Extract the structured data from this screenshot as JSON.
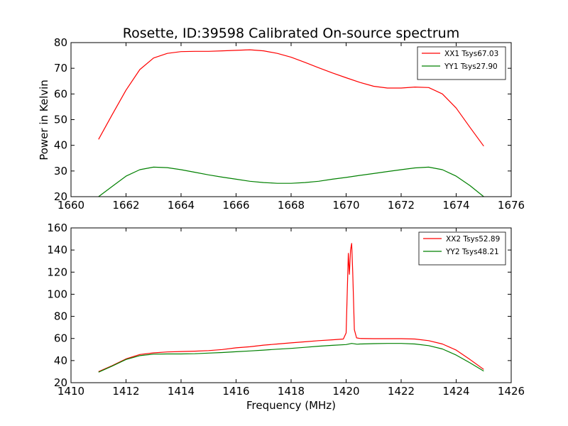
{
  "chart_data": [
    {
      "type": "line",
      "title": "Rosette, ID:39598 Calibrated On-source spectrum",
      "xlabel": "",
      "ylabel": "Power in Kelvin",
      "xlim": [
        1660,
        1676
      ],
      "ylim": [
        20,
        80
      ],
      "xticks": [
        "1660",
        "1662",
        "1664",
        "1666",
        "1668",
        "1670",
        "1672",
        "1674",
        "1676"
      ],
      "yticks": [
        "20",
        "30",
        "40",
        "50",
        "60",
        "70",
        "80"
      ],
      "legend_position": "top-right",
      "grid": false,
      "series": [
        {
          "name": "XX1 Tsys67.03",
          "color": "#ff0000",
          "x": [
            1661.0,
            1661.5,
            1662.0,
            1662.5,
            1663.0,
            1663.5,
            1664.0,
            1664.5,
            1665.0,
            1665.5,
            1666.0,
            1666.5,
            1667.0,
            1667.5,
            1668.0,
            1668.5,
            1669.0,
            1669.5,
            1670.0,
            1670.5,
            1671.0,
            1671.5,
            1672.0,
            1672.5,
            1673.0,
            1673.5,
            1674.0,
            1674.5,
            1675.0
          ],
          "y": [
            42.3,
            52.0,
            61.5,
            69.5,
            74.0,
            75.8,
            76.5,
            76.6,
            76.6,
            76.8,
            77.0,
            77.2,
            76.8,
            75.8,
            74.3,
            72.3,
            70.2,
            68.2,
            66.3,
            64.5,
            63.0,
            62.3,
            62.3,
            62.7,
            62.5,
            60.0,
            54.5,
            47.0,
            39.7
          ]
        },
        {
          "name": "YY1 Tsys27.90",
          "color": "#008000",
          "x": [
            1661.0,
            1661.5,
            1662.0,
            1662.5,
            1663.0,
            1663.5,
            1664.0,
            1664.5,
            1665.0,
            1665.5,
            1666.0,
            1666.5,
            1667.0,
            1667.5,
            1668.0,
            1668.5,
            1669.0,
            1669.5,
            1670.0,
            1670.5,
            1671.0,
            1671.5,
            1672.0,
            1672.5,
            1673.0,
            1673.5,
            1674.0,
            1674.5,
            1675.0
          ],
          "y": [
            20.0,
            24.0,
            28.0,
            30.5,
            31.5,
            31.3,
            30.5,
            29.5,
            28.5,
            27.6,
            26.8,
            26.0,
            25.5,
            25.2,
            25.2,
            25.5,
            26.0,
            26.8,
            27.5,
            28.3,
            29.0,
            29.8,
            30.5,
            31.2,
            31.5,
            30.5,
            28.0,
            24.3,
            20.0
          ]
        }
      ]
    },
    {
      "type": "line",
      "title": "",
      "xlabel": "Frequency (MHz)",
      "ylabel": "",
      "xlim": [
        1410,
        1426
      ],
      "ylim": [
        20,
        160
      ],
      "xticks": [
        "1410",
        "1412",
        "1414",
        "1416",
        "1418",
        "1420",
        "1422",
        "1424",
        "1426"
      ],
      "yticks": [
        "20",
        "40",
        "60",
        "80",
        "100",
        "120",
        "140",
        "160"
      ],
      "legend_position": "top-right",
      "grid": false,
      "series": [
        {
          "name": "XX2 Tsys52.89",
          "color": "#ff0000",
          "x": [
            1411.0,
            1411.5,
            1412.0,
            1412.5,
            1413.0,
            1413.5,
            1414.0,
            1414.5,
            1415.0,
            1415.5,
            1416.0,
            1416.5,
            1417.0,
            1417.5,
            1418.0,
            1418.5,
            1419.0,
            1419.5,
            1419.9,
            1420.0,
            1420.08,
            1420.12,
            1420.16,
            1420.2,
            1420.24,
            1420.3,
            1420.38,
            1420.5,
            1421.0,
            1421.5,
            1422.0,
            1422.5,
            1423.0,
            1423.5,
            1424.0,
            1424.5,
            1425.0
          ],
          "y": [
            30.0,
            35.5,
            41.5,
            45.5,
            47.0,
            47.8,
            48.2,
            48.5,
            49.0,
            50.0,
            51.5,
            52.5,
            54.0,
            55.0,
            56.0,
            57.0,
            58.0,
            58.8,
            59.5,
            65.0,
            137.0,
            118.0,
            140.0,
            146.0,
            120.0,
            68.0,
            60.5,
            60.0,
            59.8,
            59.8,
            59.8,
            59.5,
            58.0,
            55.0,
            49.5,
            41.0,
            32.0
          ]
        },
        {
          "name": "YY2 Tsys48.21",
          "color": "#008000",
          "x": [
            1411.0,
            1411.5,
            1412.0,
            1412.5,
            1413.0,
            1413.5,
            1414.0,
            1414.5,
            1415.0,
            1415.5,
            1416.0,
            1416.5,
            1417.0,
            1417.5,
            1418.0,
            1418.5,
            1419.0,
            1419.5,
            1420.0,
            1420.2,
            1420.4,
            1420.5,
            1421.0,
            1421.5,
            1422.0,
            1422.5,
            1423.0,
            1423.5,
            1424.0,
            1424.5,
            1425.0
          ],
          "y": [
            29.5,
            35.0,
            41.0,
            44.5,
            45.8,
            46.0,
            46.0,
            46.2,
            46.8,
            47.3,
            48.0,
            48.7,
            49.5,
            50.3,
            51.0,
            52.0,
            53.0,
            53.8,
            54.5,
            55.5,
            54.8,
            55.0,
            55.3,
            55.5,
            55.5,
            55.0,
            53.5,
            50.5,
            45.0,
            38.0,
            30.5
          ]
        }
      ]
    }
  ]
}
